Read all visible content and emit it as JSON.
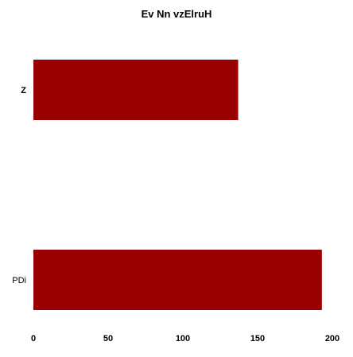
{
  "chart_data": {
    "type": "bar",
    "orientation": "horizontal",
    "title": "Ev Nn vzElruH",
    "xlabel": "",
    "ylabel": "",
    "categories": [
      "Z",
      "PDi"
    ],
    "category_label_bold": [
      true,
      false
    ],
    "values": [
      137,
      193
    ],
    "xlim": [
      0,
      200
    ],
    "xticks": [
      0,
      50,
      100,
      150,
      200
    ],
    "grid": false,
    "bar_color": "#990000"
  }
}
